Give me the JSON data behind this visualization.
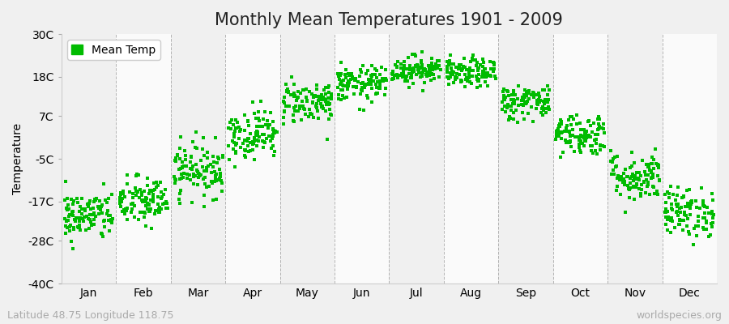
{
  "title": "Monthly Mean Temperatures 1901 - 2009",
  "ylabel": "Temperature",
  "yticks": [
    -40,
    -28,
    -17,
    -5,
    7,
    18,
    30
  ],
  "ytick_labels": [
    "-40C",
    "-28C",
    "-17C",
    "-5C",
    "7C",
    "18C",
    "30C"
  ],
  "ylim": [
    -40,
    30
  ],
  "months": [
    "Jan",
    "Feb",
    "Mar",
    "Apr",
    "May",
    "Jun",
    "Jul",
    "Aug",
    "Sep",
    "Oct",
    "Nov",
    "Dec"
  ],
  "monthly_means": [
    -21,
    -17,
    -8,
    2,
    11,
    16,
    20,
    19,
    11,
    2,
    -10,
    -20
  ],
  "monthly_stds": [
    3.5,
    3.5,
    3.8,
    3.5,
    3.0,
    2.5,
    2.0,
    2.0,
    2.5,
    3.0,
    3.5,
    3.5
  ],
  "n_years": 109,
  "dot_color": "#00bb00",
  "dot_size": 6,
  "bg_color_even": "#f0f0f0",
  "bg_color_odd": "#fafafa",
  "figure_bg": "#f0f0f0",
  "grid_color": "#888888",
  "legend_label": "Mean Temp",
  "footer_left": "Latitude 48.75 Longitude 118.75",
  "footer_right": "worldspecies.org",
  "title_fontsize": 15,
  "axis_fontsize": 10,
  "footer_fontsize": 9
}
